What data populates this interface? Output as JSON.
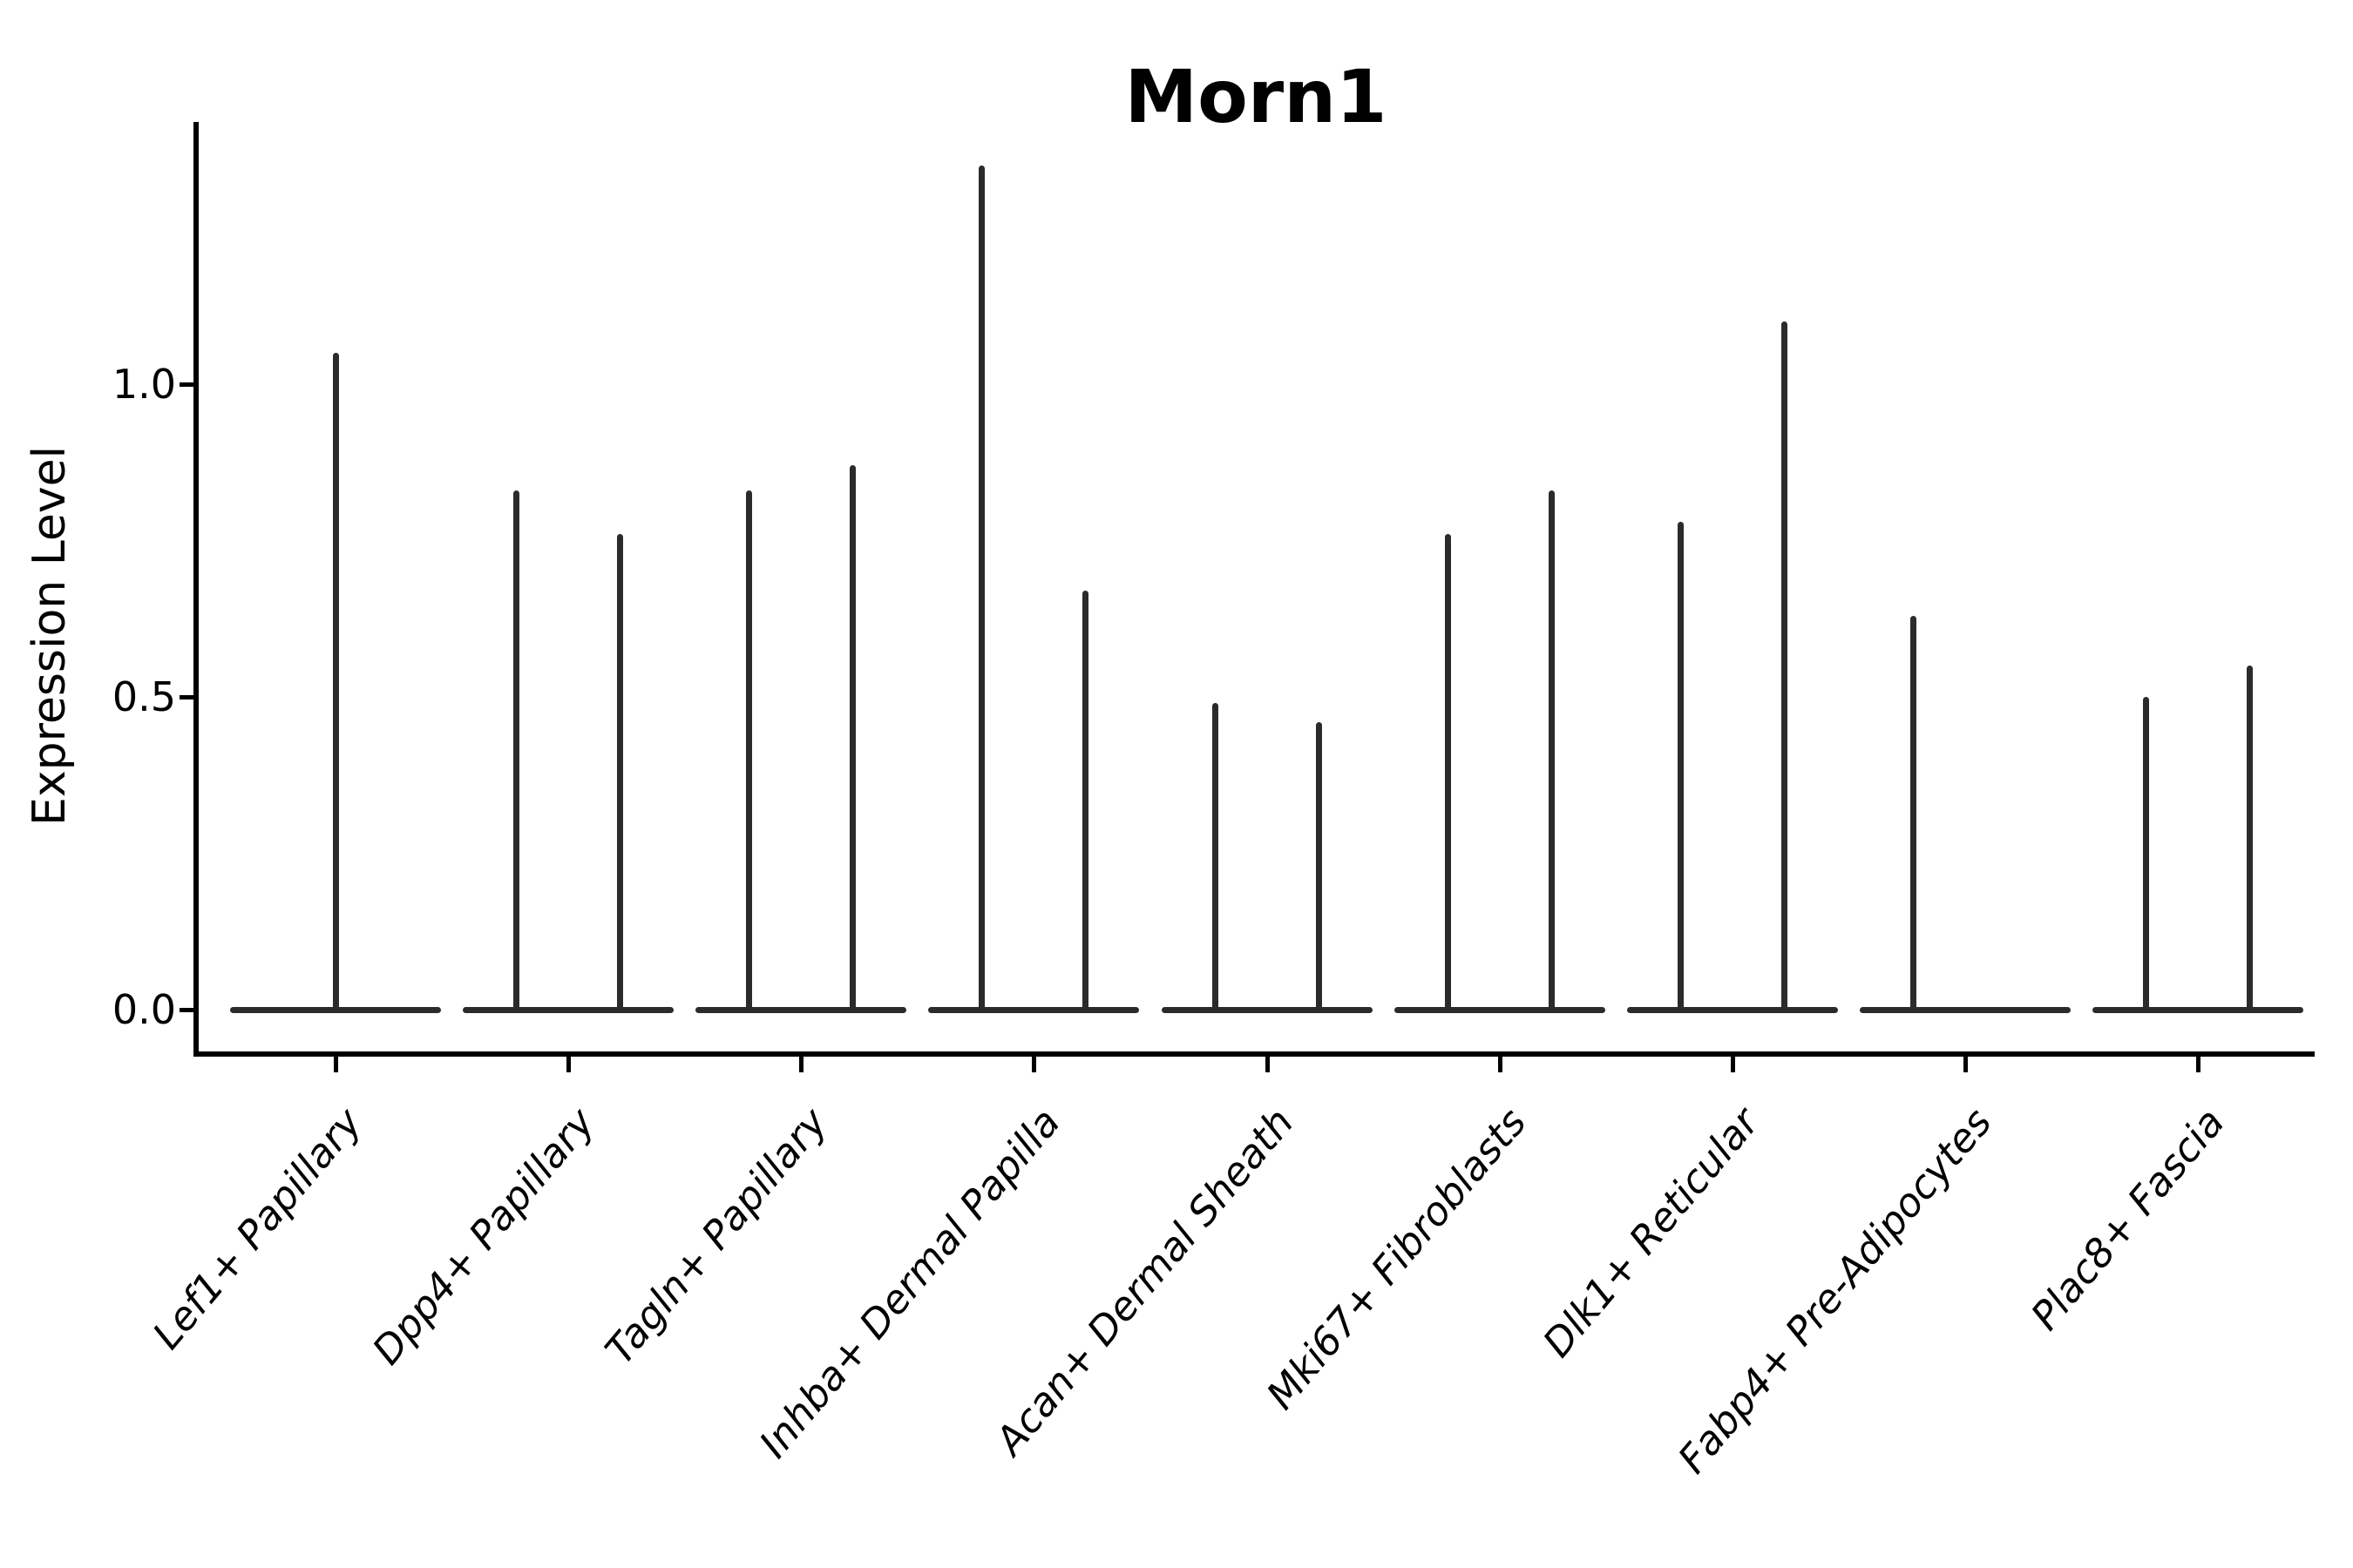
{
  "figure": {
    "title": "Morn1",
    "ylabel": "Expression Level"
  },
  "colors": {
    "violin": "#2b2b2b",
    "axis": "#000000",
    "text": "#000000",
    "background": "#ffffff"
  },
  "chart_data": {
    "type": "violin",
    "title": "Morn1",
    "xlabel": "",
    "ylabel": "Expression Level",
    "ytick_values": [
      0.0,
      0.5,
      1.0
    ],
    "ytick_labels": [
      "0.0",
      "0.5",
      "1.0"
    ],
    "ylim": [
      -0.07,
      1.42
    ],
    "grid": false,
    "legend": "none",
    "description": "Violin plot of Morn1 expression per cell type; nearly all density is concentrated at expression 0 (flat violin bodies) with thin spikes reaching the maximum expression values.",
    "categories": [
      "Lef1+ Papillary",
      "Dpp4+ Papillary",
      "Tagln+ Papillary",
      "Inhba+ Dermal Papilla",
      "Acan+ Dermal Sheath",
      "Mki67+ Fibroblasts",
      "Dlk1+ Reticular",
      "Fabp4+ Pre-Adipocytes",
      "Plac8+ Fascia"
    ],
    "violins": [
      {
        "category": "Lef1+ Papillary",
        "bulk_at": 0.0,
        "spikes": [
          {
            "position": "center",
            "max": 1.05
          }
        ]
      },
      {
        "category": "Dpp4+ Papillary",
        "bulk_at": 0.0,
        "spikes": [
          {
            "position": "left",
            "max": 0.83
          },
          {
            "position": "right",
            "max": 0.76
          }
        ]
      },
      {
        "category": "Tagln+ Papillary",
        "bulk_at": 0.0,
        "spikes": [
          {
            "position": "left",
            "max": 0.83
          },
          {
            "position": "right",
            "max": 0.87
          }
        ]
      },
      {
        "category": "Inhba+ Dermal Papilla",
        "bulk_at": 0.0,
        "spikes": [
          {
            "position": "left",
            "max": 1.35
          },
          {
            "position": "right",
            "max": 0.67
          }
        ]
      },
      {
        "category": "Acan+ Dermal Sheath",
        "bulk_at": 0.0,
        "spikes": [
          {
            "position": "left",
            "max": 0.49
          },
          {
            "position": "right",
            "max": 0.46
          }
        ]
      },
      {
        "category": "Mki67+ Fibroblasts",
        "bulk_at": 0.0,
        "spikes": [
          {
            "position": "left",
            "max": 0.76
          },
          {
            "position": "right",
            "max": 0.83
          }
        ]
      },
      {
        "category": "Dlk1+ Reticular",
        "bulk_at": 0.0,
        "spikes": [
          {
            "position": "left",
            "max": 0.78
          },
          {
            "position": "right",
            "max": 1.1
          }
        ]
      },
      {
        "category": "Fabp4+ Pre-Adipocytes",
        "bulk_at": 0.0,
        "spikes": [
          {
            "position": "left",
            "max": 0.63
          }
        ]
      },
      {
        "category": "Plac8+ Fascia",
        "bulk_at": 0.0,
        "spikes": [
          {
            "position": "left",
            "max": 0.5
          },
          {
            "position": "right",
            "max": 0.55
          }
        ]
      }
    ]
  }
}
